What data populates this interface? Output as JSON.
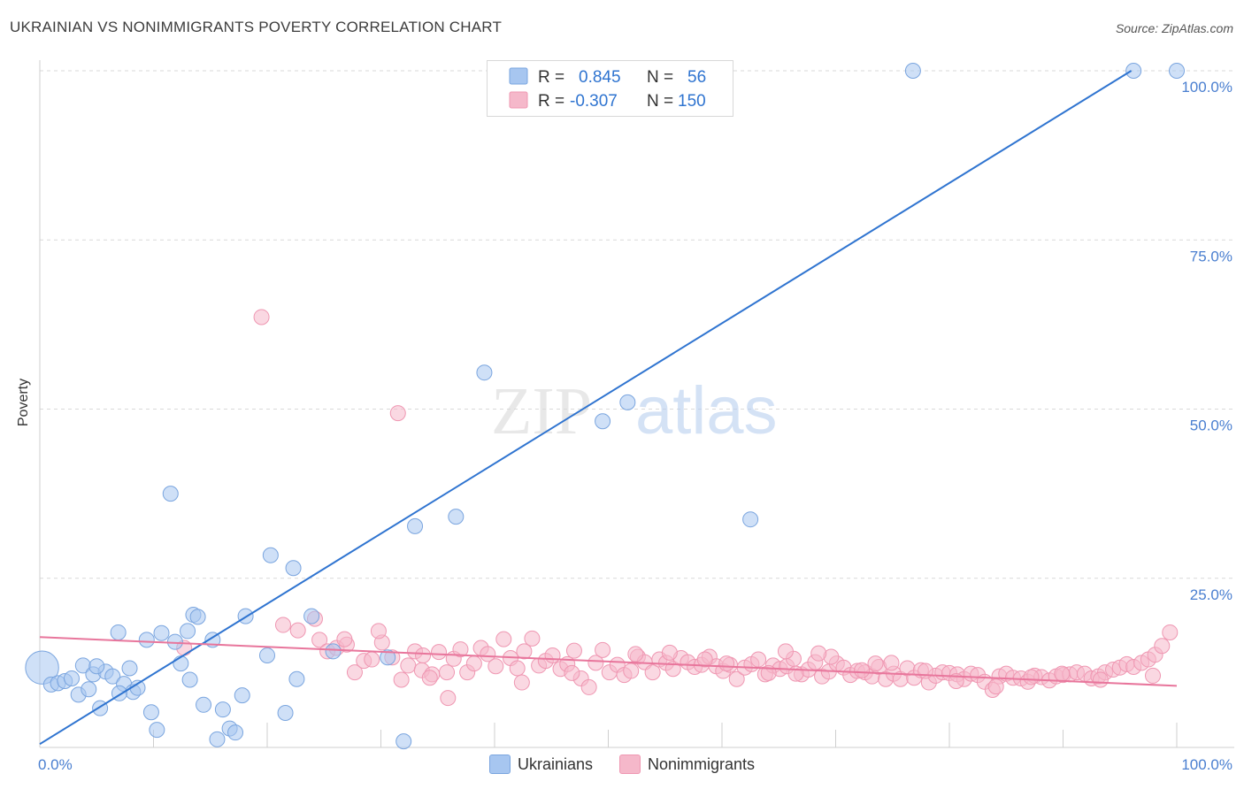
{
  "header": {
    "title": "UKRAINIAN VS NONIMMIGRANTS POVERTY CORRELATION CHART",
    "source": "Source: ZipAtlas.com"
  },
  "watermark": {
    "zip": "ZIP",
    "atlas": "atlas"
  },
  "legend": {
    "rows": [
      {
        "r_label": "R =",
        "r_value": "0.845",
        "n_label": "N =",
        "n_value": "56",
        "color": "#a7c6f0"
      },
      {
        "r_label": "R =",
        "r_value": "-0.307",
        "n_label": "N =",
        "n_value": "150",
        "color": "#f5b8ca"
      }
    ]
  },
  "bottom_legend": [
    {
      "label": "Ukrainians",
      "color": "#a7c6f0"
    },
    {
      "label": "Nonimmigrants",
      "color": "#f5b8ca"
    }
  ],
  "colors": {
    "blue_fill": "#a7c6f0",
    "blue_stroke": "#7aa5df",
    "blue_line": "#2f74d0",
    "pink_fill": "#f5b8ca",
    "pink_stroke": "#ef97b2",
    "pink_line": "#e8769c",
    "grid": "#d9d9d9",
    "tick_text": "#4a7fd0"
  },
  "chart_data": {
    "type": "scatter",
    "title": "UKRAINIAN VS NONIMMIGRANTS POVERTY CORRELATION CHART",
    "xlabel": "",
    "ylabel": "Poverty",
    "xlim": [
      0,
      100
    ],
    "ylim": [
      0,
      100
    ],
    "x_tick_labels": [
      "0.0%",
      "100.0%"
    ],
    "y_ticks": [
      25,
      50,
      75,
      100
    ],
    "y_tick_labels": [
      "25.0%",
      "50.0%",
      "75.0%",
      "100.0%"
    ],
    "grid": true,
    "legend_position": "top-center",
    "series": [
      {
        "name": "Ukrainians",
        "r": 0.845,
        "n": 56,
        "trend": {
          "x": [
            0,
            96
          ],
          "y": [
            0.5,
            100
          ]
        },
        "points": [
          [
            0.2,
            11.8,
            2.2
          ],
          [
            1.0,
            9.3,
            1
          ],
          [
            1.6,
            9.5,
            1
          ],
          [
            2.2,
            9.8,
            1
          ],
          [
            2.8,
            10.2,
            1
          ],
          [
            3.4,
            7.8,
            1
          ],
          [
            3.8,
            12.1,
            1
          ],
          [
            4.3,
            8.6,
            1
          ],
          [
            4.7,
            10.8,
            1
          ],
          [
            5.3,
            5.8,
            1
          ],
          [
            5.8,
            11.2,
            1
          ],
          [
            6.4,
            10.5,
            1
          ],
          [
            6.9,
            17.0,
            1
          ],
          [
            7.4,
            9.4,
            1
          ],
          [
            7.9,
            11.7,
            1
          ],
          [
            8.2,
            8.2,
            1
          ],
          [
            8.6,
            8.8,
            1
          ],
          [
            9.4,
            15.9,
            1
          ],
          [
            9.8,
            5.2,
            1
          ],
          [
            10.3,
            2.6,
            1
          ],
          [
            10.7,
            16.9,
            1
          ],
          [
            11.5,
            37.5,
            1
          ],
          [
            11.9,
            15.6,
            1
          ],
          [
            12.4,
            12.4,
            1
          ],
          [
            13.0,
            17.2,
            1
          ],
          [
            13.5,
            19.6,
            1
          ],
          [
            13.9,
            19.3,
            1
          ],
          [
            14.4,
            6.3,
            1
          ],
          [
            15.2,
            15.9,
            1
          ],
          [
            15.6,
            1.2,
            1
          ],
          [
            16.1,
            5.6,
            1
          ],
          [
            16.7,
            2.8,
            1
          ],
          [
            17.2,
            2.2,
            1
          ],
          [
            17.8,
            7.7,
            1
          ],
          [
            18.1,
            19.4,
            1
          ],
          [
            20.0,
            13.6,
            1
          ],
          [
            21.6,
            5.1,
            1
          ],
          [
            22.3,
            26.5,
            1
          ],
          [
            22.6,
            10.1,
            1
          ],
          [
            23.9,
            19.4,
            1
          ],
          [
            25.8,
            14.2,
            1
          ],
          [
            30.6,
            13.3,
            1
          ],
          [
            32.0,
            0.9,
            1
          ],
          [
            33.0,
            32.7,
            1
          ],
          [
            36.6,
            34.1,
            1
          ],
          [
            39.1,
            55.4,
            1
          ],
          [
            49.5,
            48.2,
            1
          ],
          [
            51.7,
            51.0,
            1
          ],
          [
            62.5,
            33.7,
            1
          ],
          [
            76.8,
            100.0,
            1
          ],
          [
            96.2,
            100.0,
            1
          ],
          [
            100.0,
            100.0,
            1
          ],
          [
            20.3,
            28.4,
            1
          ],
          [
            5.0,
            12.0,
            1
          ],
          [
            13.2,
            10.0,
            1
          ],
          [
            7.0,
            8.0,
            1
          ]
        ]
      },
      {
        "name": "Nonimmigrants",
        "r": -0.307,
        "n": 150,
        "trend": {
          "x": [
            0,
            100
          ],
          "y": [
            16.3,
            9.1
          ]
        },
        "points": [
          [
            12.7,
            14.7
          ],
          [
            19.5,
            63.6
          ],
          [
            21.4,
            18.1
          ],
          [
            22.7,
            17.3
          ],
          [
            24.2,
            19.0
          ],
          [
            24.6,
            15.9
          ],
          [
            25.3,
            14.2
          ],
          [
            26.1,
            14.7
          ],
          [
            27.0,
            15.2
          ],
          [
            27.7,
            11.1
          ],
          [
            28.5,
            12.8
          ],
          [
            29.2,
            13.0
          ],
          [
            30.1,
            15.5
          ],
          [
            31.0,
            13.3
          ],
          [
            31.8,
            10.0
          ],
          [
            32.4,
            12.1
          ],
          [
            33.0,
            14.2
          ],
          [
            33.6,
            11.4
          ],
          [
            34.5,
            10.8
          ],
          [
            35.1,
            14.1
          ],
          [
            35.8,
            11.1
          ],
          [
            36.4,
            13.1
          ],
          [
            37.0,
            14.5
          ],
          [
            37.6,
            11.1
          ],
          [
            38.2,
            12.4
          ],
          [
            38.8,
            14.7
          ],
          [
            39.4,
            13.8
          ],
          [
            40.1,
            12.0
          ],
          [
            40.8,
            16.0
          ],
          [
            41.4,
            13.2
          ],
          [
            42.0,
            11.7
          ],
          [
            42.6,
            14.2
          ],
          [
            43.3,
            16.1
          ],
          [
            43.9,
            12.1
          ],
          [
            44.5,
            12.8
          ],
          [
            45.1,
            13.6
          ],
          [
            45.8,
            11.6
          ],
          [
            46.4,
            12.3
          ],
          [
            47.0,
            14.3
          ],
          [
            47.6,
            10.2
          ],
          [
            48.3,
            8.9
          ],
          [
            48.9,
            12.5
          ],
          [
            49.5,
            14.4
          ],
          [
            50.1,
            11.1
          ],
          [
            50.8,
            12.2
          ],
          [
            51.4,
            10.7
          ],
          [
            52.0,
            11.3
          ],
          [
            52.6,
            13.4
          ],
          [
            53.2,
            12.6
          ],
          [
            53.9,
            11.1
          ],
          [
            54.5,
            13.0
          ],
          [
            55.1,
            12.5
          ],
          [
            55.7,
            11.6
          ],
          [
            56.4,
            13.2
          ],
          [
            57.0,
            12.6
          ],
          [
            57.6,
            11.9
          ],
          [
            58.2,
            12.2
          ],
          [
            58.9,
            13.4
          ],
          [
            59.5,
            12.0
          ],
          [
            60.1,
            11.3
          ],
          [
            60.7,
            12.2
          ],
          [
            61.3,
            10.1
          ],
          [
            62.0,
            11.8
          ],
          [
            62.6,
            12.3
          ],
          [
            63.2,
            13.0
          ],
          [
            63.8,
            10.8
          ],
          [
            64.5,
            12.1
          ],
          [
            65.1,
            11.6
          ],
          [
            65.7,
            12.0
          ],
          [
            66.3,
            13.1
          ],
          [
            67.0,
            10.8
          ],
          [
            67.6,
            11.5
          ],
          [
            68.2,
            12.6
          ],
          [
            68.8,
            10.5
          ],
          [
            69.4,
            11.2
          ],
          [
            70.1,
            12.4
          ],
          [
            70.7,
            11.8
          ],
          [
            71.3,
            10.7
          ],
          [
            71.9,
            11.3
          ],
          [
            72.6,
            11.1
          ],
          [
            73.2,
            10.5
          ],
          [
            73.8,
            11.9
          ],
          [
            74.4,
            10.1
          ],
          [
            75.1,
            10.9
          ],
          [
            75.7,
            10.1
          ],
          [
            76.3,
            11.7
          ],
          [
            76.9,
            10.3
          ],
          [
            77.5,
            11.4
          ],
          [
            78.2,
            9.6
          ],
          [
            78.8,
            10.6
          ],
          [
            79.4,
            11.1
          ],
          [
            80.0,
            11.0
          ],
          [
            80.7,
            10.8
          ],
          [
            81.3,
            10.1
          ],
          [
            81.9,
            10.9
          ],
          [
            82.5,
            10.7
          ],
          [
            83.1,
            9.7
          ],
          [
            83.8,
            8.5
          ],
          [
            84.4,
            10.5
          ],
          [
            85.0,
            10.9
          ],
          [
            85.6,
            10.3
          ],
          [
            86.3,
            10.2
          ],
          [
            86.9,
            9.7
          ],
          [
            87.5,
            10.6
          ],
          [
            88.1,
            10.4
          ],
          [
            88.8,
            9.9
          ],
          [
            89.4,
            10.5
          ],
          [
            90.0,
            10.7
          ],
          [
            90.6,
            10.8
          ],
          [
            91.2,
            11.1
          ],
          [
            91.9,
            10.9
          ],
          [
            92.5,
            10.2
          ],
          [
            93.1,
            10.5
          ],
          [
            93.7,
            11.1
          ],
          [
            94.4,
            11.5
          ],
          [
            95.0,
            11.8
          ],
          [
            95.6,
            12.3
          ],
          [
            96.2,
            11.9
          ],
          [
            96.9,
            12.5
          ],
          [
            97.5,
            13.0
          ],
          [
            98.1,
            13.7
          ],
          [
            98.7,
            15.0
          ],
          [
            99.4,
            17.0
          ],
          [
            35.9,
            7.3
          ],
          [
            26.8,
            16.0
          ],
          [
            29.8,
            17.2
          ],
          [
            33.7,
            13.6
          ],
          [
            34.3,
            10.3
          ],
          [
            42.4,
            9.6
          ],
          [
            46.8,
            11.0
          ],
          [
            52.4,
            13.8
          ],
          [
            55.4,
            14.0
          ],
          [
            58.5,
            13.0
          ],
          [
            60.4,
            12.4
          ],
          [
            64.1,
            11.0
          ],
          [
            66.5,
            10.9
          ],
          [
            69.6,
            13.4
          ],
          [
            72.3,
            11.4
          ],
          [
            74.9,
            12.5
          ],
          [
            77.9,
            11.3
          ],
          [
            80.6,
            9.8
          ],
          [
            84.1,
            9.0
          ],
          [
            87.2,
            10.4
          ],
          [
            89.9,
            10.9
          ],
          [
            93.3,
            10.0
          ],
          [
            97.9,
            10.6
          ],
          [
            65.6,
            14.2
          ],
          [
            68.5,
            13.9
          ],
          [
            73.5,
            12.4
          ],
          [
            31.5,
            49.4
          ]
        ]
      }
    ]
  }
}
